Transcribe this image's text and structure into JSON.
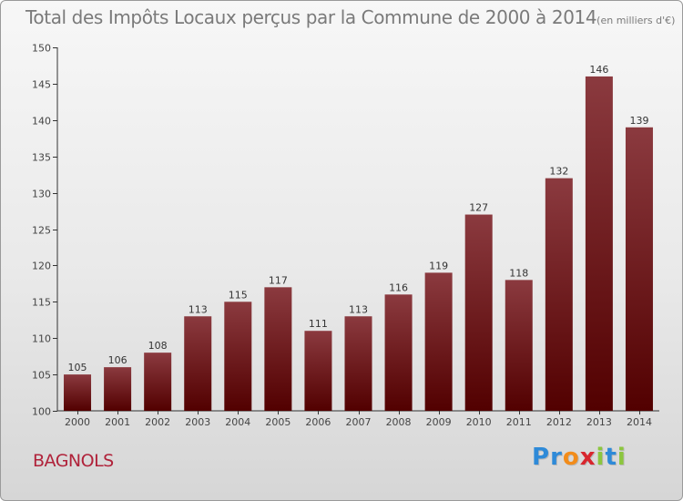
{
  "title": "Total des Impôts Locaux perçus par la Commune de 2000 à 2014",
  "subtitle": "(en milliers d'€)",
  "commune": "BAGNOLS",
  "logo": {
    "letters": [
      "P",
      "r",
      "o",
      "x",
      "i",
      "t",
      "i"
    ],
    "colors": [
      "#2e8ad8",
      "#2e8ad8",
      "#f28c1a",
      "#d8262e",
      "#8cc63e",
      "#2e8ad8",
      "#8cc63e"
    ]
  },
  "colors": {
    "bar_top": "#8b3a3f",
    "bar_bottom": "#520000"
  },
  "chart_data": {
    "type": "bar",
    "title": "Total des Impôts Locaux perçus par la Commune de 2000 à 2014",
    "xlabel": "",
    "ylabel": "en milliers d'€",
    "categories": [
      "2000",
      "2001",
      "2002",
      "2003",
      "2004",
      "2005",
      "2006",
      "2007",
      "2008",
      "2009",
      "2010",
      "2011",
      "2012",
      "2013",
      "2014"
    ],
    "values": [
      105,
      106,
      108,
      113,
      115,
      117,
      111,
      113,
      116,
      119,
      127,
      118,
      132,
      146,
      139
    ],
    "ylim": [
      100,
      150
    ],
    "yticks": [
      100,
      105,
      110,
      115,
      120,
      125,
      130,
      135,
      140,
      145,
      150
    ],
    "grid": false,
    "legend": "none"
  }
}
